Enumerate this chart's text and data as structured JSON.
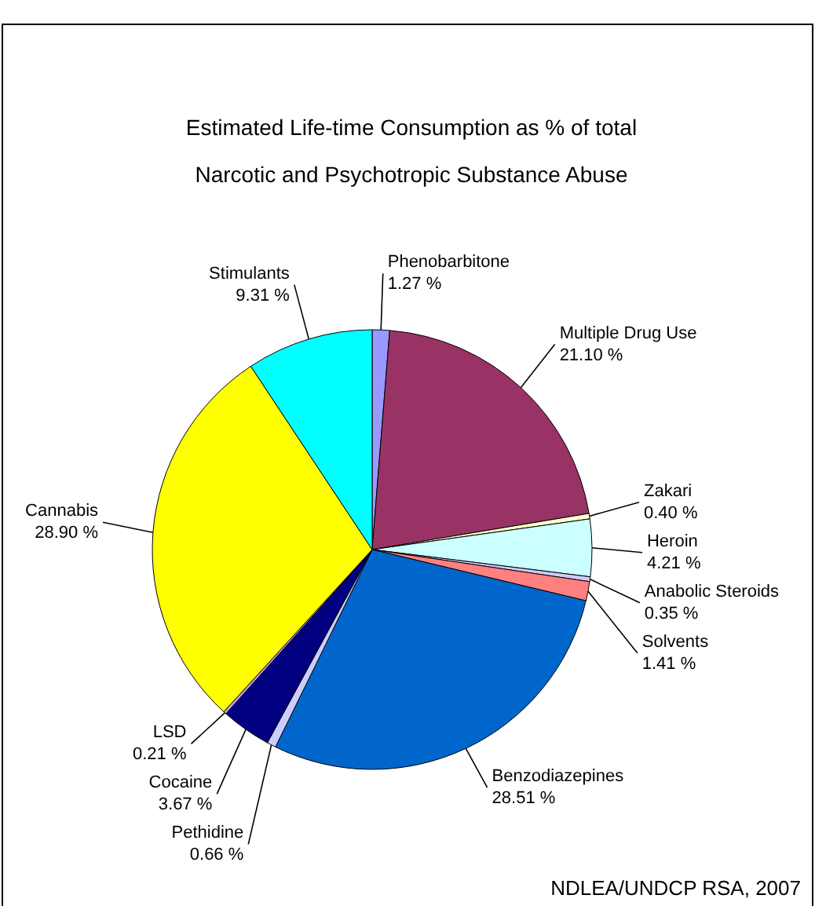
{
  "chart_data": {
    "type": "pie",
    "title": "Estimated Life-time Consumption as % of  total\nNarcotic and Psychotropic Substance Abuse",
    "categories": [
      "Phenobarbitone",
      "Multiple Drug Use",
      "Zakari",
      "Heroin",
      "Anabolic Steroids",
      "Solvents",
      "Benzodiazepines",
      "Pethidine",
      "Cocaine",
      "LSD",
      "Cannabis",
      "Stimulants"
    ],
    "values": [
      1.27,
      21.1,
      0.4,
      4.21,
      0.35,
      1.41,
      28.51,
      0.66,
      3.67,
      0.21,
      28.9,
      9.31
    ],
    "value_labels": [
      "1.27 %",
      "21.10 %",
      "0.40 %",
      "4.21 %",
      "0.35 %",
      "1.41 %",
      "28.51 %",
      "0.66 %",
      "3.67 %",
      "0.21 %",
      "28.90 %",
      "9.31 %"
    ],
    "colors": [
      "#9999ff",
      "#993366",
      "#ffffcc",
      "#ccffff",
      "#ccccff",
      "#ff8080",
      "#0066cc",
      "#ccccff",
      "#000080",
      "#cc99ff",
      "#ffff00",
      "#00ffff"
    ],
    "legend": false,
    "annotations": [
      "NDLEA/UNDCP  RSA, 2007"
    ]
  }
}
